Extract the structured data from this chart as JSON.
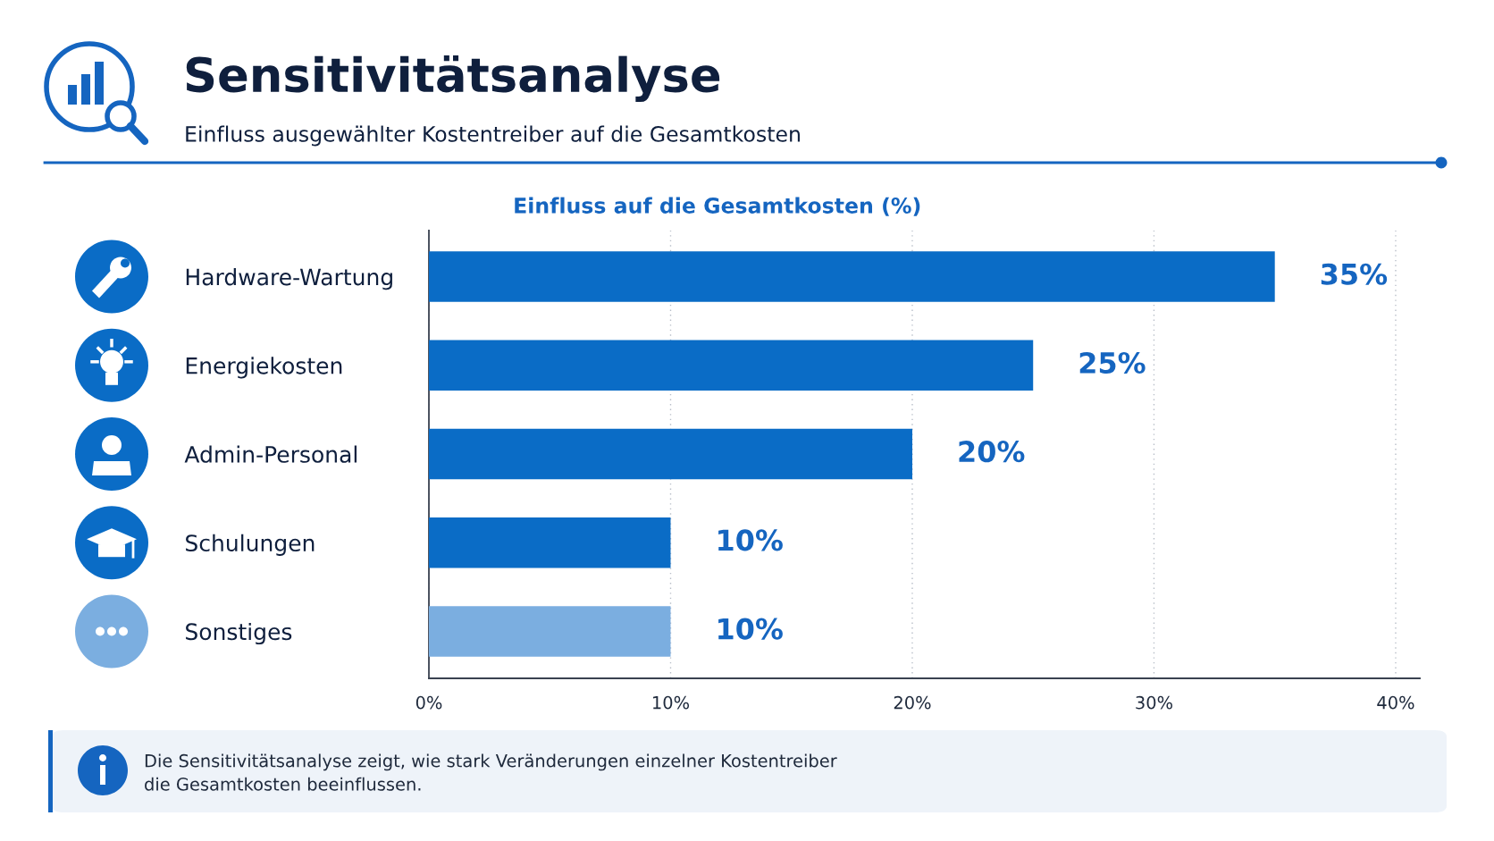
{
  "chart_data": {
    "type": "bar",
    "orientation": "horizontal",
    "title": "Sensitivitätsanalyse",
    "subtitle": "Einfluss ausgewählter Kostentreiber auf die Gesamtkosten",
    "xlabel": "Einfluss auf die Gesamtkosten (%)",
    "categories": [
      "Hardware-Wartung",
      "Energiekosten",
      "Admin-Personal",
      "Schulungen",
      "Sonstiges"
    ],
    "values": [
      35,
      25,
      20,
      10,
      10
    ],
    "colors": [
      "#0a6cc6",
      "#0a6cc6",
      "#0a6cc6",
      "#0a6cc6",
      "#7baee0"
    ],
    "value_labels": [
      "35%",
      "25%",
      "20%",
      "10%",
      "10%"
    ],
    "xlim": [
      0,
      41
    ],
    "xticks": [
      {
        "value": 0,
        "label": "0%"
      },
      {
        "value": 10,
        "label": "10%"
      },
      {
        "value": 20,
        "label": "20%"
      },
      {
        "value": 30,
        "label": "30%"
      },
      {
        "value": 40,
        "label": "40%"
      }
    ],
    "grid": "x",
    "annotations": [
      "Die Sensitivitätsanalyse zeigt, wie stark Veränderungen einzelner Kostentreiber\ndie Gesamtkosten beeinflussen."
    ]
  }
}
